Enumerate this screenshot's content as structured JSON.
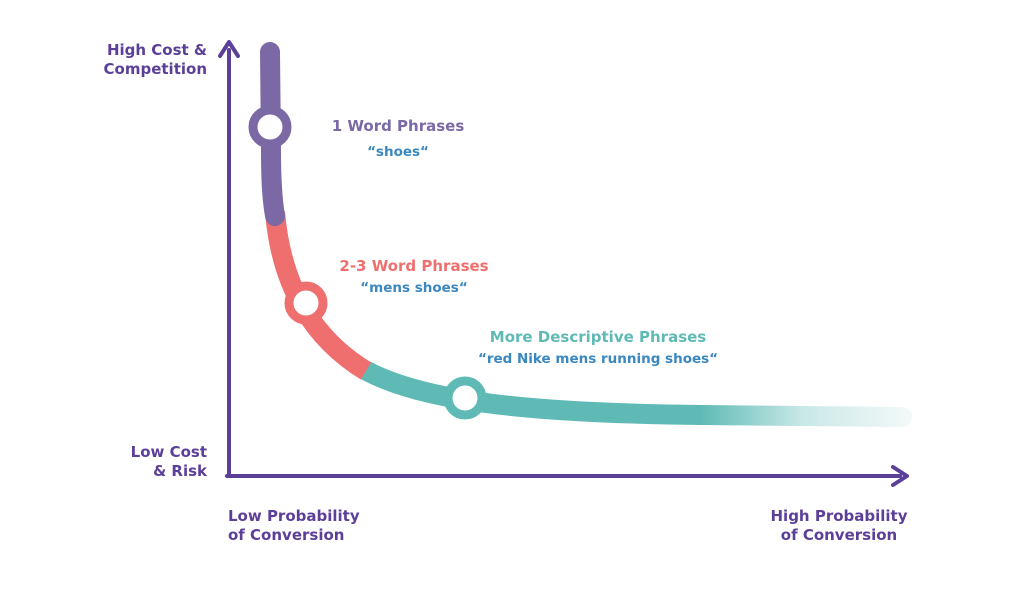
{
  "axes": {
    "y_top": [
      "High Cost &",
      "Competition"
    ],
    "y_bottom": [
      "Low Cost",
      "& Risk"
    ],
    "x_left": [
      "Low Probability",
      "of Conversion"
    ],
    "x_right": [
      "High Probability",
      "of Conversion"
    ]
  },
  "stages": [
    {
      "label": "1 Word Phrases",
      "example": "“shoes“"
    },
    {
      "label": "2-3 Word Phrases",
      "example": "“mens shoes“"
    },
    {
      "label": "More Descriptive Phrases",
      "example": "“red Nike mens running shoes“"
    }
  ]
}
